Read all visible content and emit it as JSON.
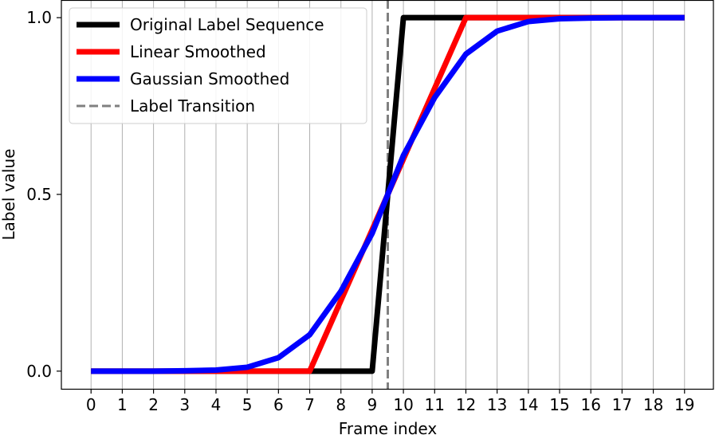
{
  "chart_data": {
    "type": "line",
    "title": "",
    "xlabel": "Frame index",
    "ylabel": "Label value",
    "x": [
      0,
      1,
      2,
      3,
      4,
      5,
      6,
      7,
      8,
      9,
      10,
      11,
      12,
      13,
      14,
      15,
      16,
      17,
      18,
      19
    ],
    "x_tick_labels": [
      "0",
      "1",
      "2",
      "3",
      "4",
      "5",
      "6",
      "7",
      "8",
      "9",
      "10",
      "11",
      "12",
      "13",
      "14",
      "15",
      "16",
      "17",
      "18",
      "19"
    ],
    "y_ticks": [
      0.0,
      0.5,
      1.0
    ],
    "y_tick_labels": [
      "0.0",
      "0.5",
      "1.0"
    ],
    "xlim": [
      -0.95,
      19.95
    ],
    "ylim": [
      -0.05,
      1.05
    ],
    "grid": "x-only",
    "legend_placement": "top-left",
    "series": [
      {
        "name": "Original Label Sequence",
        "color": "#000000",
        "values": [
          0,
          0,
          0,
          0,
          0,
          0,
          0,
          0,
          0,
          0,
          1,
          1,
          1,
          1,
          1,
          1,
          1,
          1,
          1,
          1
        ]
      },
      {
        "name": "Linear Smoothed",
        "color": "#ff0000",
        "values": [
          0,
          0,
          0,
          0,
          0,
          0,
          0,
          0,
          0.2,
          0.4,
          0.6,
          0.8,
          1,
          1,
          1,
          1,
          1,
          1,
          1,
          1
        ]
      },
      {
        "name": "Gaussian Smoothed",
        "color": "#0000ff",
        "values": [
          0,
          0,
          0,
          0.001,
          0.003,
          0.011,
          0.038,
          0.103,
          0.226,
          0.39,
          0.61,
          0.774,
          0.897,
          0.962,
          0.989,
          0.997,
          0.999,
          1,
          1,
          1
        ]
      }
    ],
    "reference_lines": [
      {
        "name": "Label Transition",
        "orientation": "vertical",
        "x": 9.5,
        "color": "#808080",
        "style": "dashed"
      }
    ]
  }
}
